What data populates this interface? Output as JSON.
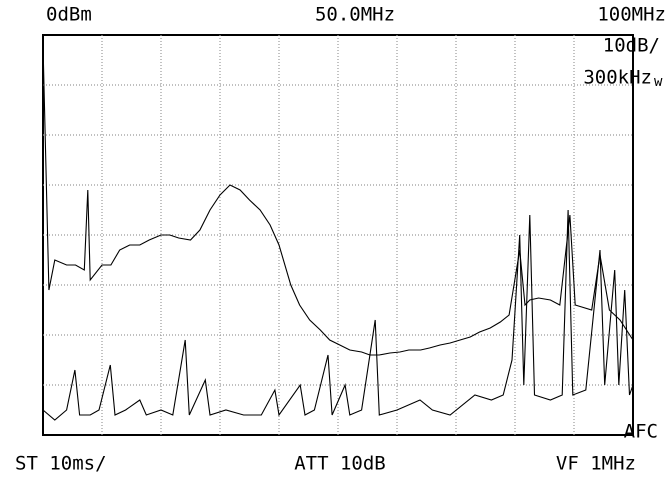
{
  "chart_data": {
    "type": "line",
    "readouts": {
      "ref_level": "0dBm",
      "center": "50.0MHz",
      "span_end": "100MHz",
      "scale": "10dB/",
      "rbw": "300kHz",
      "rbw_mark": "w",
      "sweep": "ST 10ms/",
      "atten": "ATT 10dB",
      "vbw": "VF 1MHz",
      "afc": "AFC"
    },
    "xlim": [
      0,
      100
    ],
    "ylim": [
      -80,
      0
    ],
    "grid": {
      "x_divisions": 10,
      "y_divisions": 8,
      "color": "#9a9a9a"
    },
    "series": [
      {
        "color": "#000000",
        "x": [
          0,
          1,
          2,
          4,
          5.5,
          7,
          7.6,
          8,
          10,
          11.5,
          13,
          14.7,
          16.4,
          18,
          20,
          21.5,
          23,
          25,
          26.6,
          28.3,
          30,
          31.7,
          33.4,
          35,
          36.8,
          38.5,
          40,
          42,
          43.5,
          45.2,
          47,
          48.6,
          50.3,
          52,
          54,
          55.4,
          57,
          58.8,
          60.5,
          62,
          64,
          65.5,
          67.3,
          69,
          70.7,
          72.4,
          74,
          75.8,
          77.5,
          79,
          80.8,
          81.7,
          82.5,
          84,
          86,
          87.6,
          89.3,
          90.2,
          93,
          94.4,
          96,
          97.8,
          100
        ],
        "values": [
          -2,
          -51,
          -45,
          -46,
          -46,
          -47,
          -31,
          -49,
          -46,
          -46,
          -43,
          -42,
          -42,
          -41,
          -40,
          -40,
          -40.6,
          -41,
          -39,
          -35,
          -32,
          -30,
          -31,
          -33,
          -35,
          -38,
          -42,
          -50,
          -54,
          -57,
          -59,
          -61,
          -62,
          -63,
          -63.4,
          -64,
          -64,
          -63.6,
          -63.4,
          -63,
          -63,
          -62.6,
          -62,
          -61.6,
          -61,
          -60.4,
          -59.4,
          -58.6,
          -57.4,
          -56,
          -43,
          -54,
          -53,
          -52.6,
          -53,
          -54,
          -36,
          -54,
          -55,
          -44,
          -55,
          -57,
          -61
        ]
      },
      {
        "color": "#000000",
        "x": [
          0,
          2,
          4,
          5.4,
          6.2,
          8,
          9.5,
          11.4,
          12.2,
          14,
          16.4,
          17.5,
          20,
          22,
          24.1,
          24.8,
          27.5,
          28.3,
          31,
          34,
          37,
          39.3,
          40,
          43.6,
          44.4,
          46,
          48.3,
          49,
          51.2,
          52,
          54,
          56.3,
          57,
          60,
          63.9,
          66,
          69,
          73.2,
          76,
          78,
          79.5,
          80.8,
          81.5,
          82.5,
          83.3,
          86,
          88,
          89,
          89.8,
          92,
          94.4,
          95.2,
          96.9,
          97.6,
          98.6,
          99.4,
          100
        ],
        "values": [
          -75,
          -77,
          -75,
          -67,
          -76,
          -76,
          -75,
          -66,
          -76,
          -75,
          -73,
          -76,
          -75,
          -76,
          -61,
          -76,
          -69,
          -76,
          -75,
          -76,
          -76,
          -71,
          -76,
          -70,
          -76,
          -75,
          -64,
          -76,
          -70,
          -76,
          -75,
          -57,
          -76,
          -75,
          -73,
          -75,
          -76,
          -72,
          -73,
          -72,
          -65,
          -40,
          -70,
          -36,
          -72,
          -73,
          -72,
          -35,
          -72,
          -71,
          -43,
          -70,
          -47,
          -70,
          -51,
          -72,
          -70
        ]
      }
    ]
  }
}
